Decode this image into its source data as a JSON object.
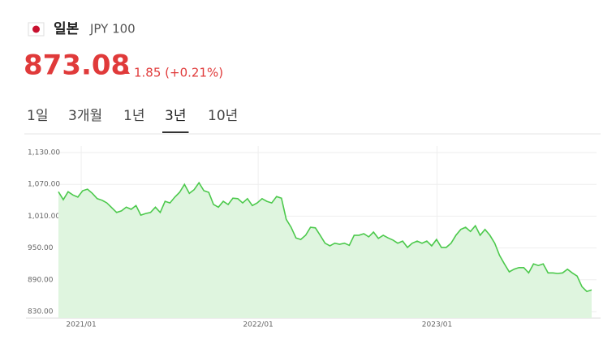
{
  "header": {
    "country": "일본",
    "currency": "JPY 100",
    "price": "873.08",
    "change": "1.85 (+0.21%)"
  },
  "tabs": [
    "1일",
    "3개월",
    "1년",
    "3년",
    "10년"
  ],
  "selected_tab": 3,
  "chart_data": {
    "type": "area",
    "color": "#4cc94c",
    "fill": "#dff5df",
    "grid": true,
    "xlim": [
      0,
      111
    ],
    "xticks": [
      {
        "value": 4.7,
        "label": "2021/01"
      },
      {
        "value": 41.2,
        "label": "2022/01"
      },
      {
        "value": 78.1,
        "label": "2023/01"
      }
    ],
    "ylim": [
      830,
      1130
    ],
    "yticks": [
      {
        "value": 830,
        "label": "830.00"
      },
      {
        "value": 890,
        "label": "890.00"
      },
      {
        "value": 950,
        "label": "950.00"
      },
      {
        "value": 1010,
        "label": "1,010.00"
      },
      {
        "value": 1070,
        "label": "1,070.00"
      },
      {
        "value": 1130,
        "label": "1,130.00"
      }
    ],
    "values": [
      1056,
      1041,
      1056,
      1050,
      1046,
      1058,
      1061,
      1053,
      1043,
      1040,
      1035,
      1026,
      1017,
      1020,
      1027,
      1023,
      1030,
      1012,
      1015,
      1017,
      1027,
      1017,
      1038,
      1035,
      1046,
      1055,
      1070,
      1053,
      1060,
      1073,
      1058,
      1055,
      1032,
      1027,
      1038,
      1032,
      1044,
      1043,
      1035,
      1043,
      1030,
      1035,
      1043,
      1038,
      1035,
      1047,
      1044,
      1004,
      989,
      969,
      966,
      974,
      989,
      988,
      974,
      959,
      954,
      959,
      957,
      959,
      955,
      974,
      974,
      977,
      971,
      980,
      968,
      974,
      969,
      965,
      959,
      963,
      951,
      959,
      963,
      959,
      963,
      954,
      966,
      951,
      951,
      959,
      974,
      985,
      989,
      981,
      992,
      974,
      985,
      974,
      959,
      936,
      920,
      905,
      910,
      913,
      913,
      903,
      920,
      917,
      920,
      903,
      903,
      902,
      903,
      910,
      903,
      897,
      877,
      868,
      871
    ]
  }
}
